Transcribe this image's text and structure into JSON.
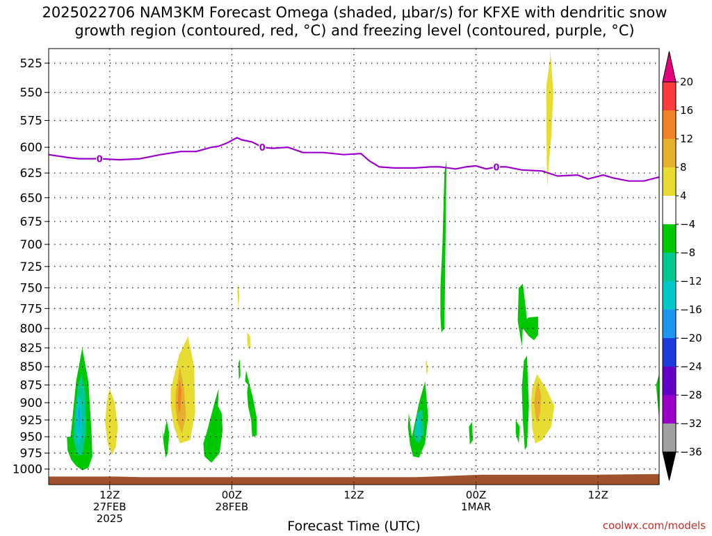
{
  "title": {
    "line1": "2025022706 NAM3KM Forecast Omega (shaded, μbar/s) for KFXE with dendritic snow",
    "line2": "growth region (contoured, red, °C) and freezing level (contoured, purple, °C)"
  },
  "credit": "coolwx.com/models",
  "colors": {
    "freezing_line": "#9900cc",
    "ground": "#a0522d",
    "grid": "#000000"
  },
  "chart_data": {
    "type": "heatmap",
    "title": "2025022706 NAM3KM Forecast Omega (shaded, μbar/s) for KFXE with dendritic snow growth region (contoured, red, °C) and freezing level (contoured, purple, °C)",
    "xlabel": "Forecast Time (UTC)",
    "ylabel": "",
    "x_unit": "forecast hour from 2025-02-27 06Z",
    "xlim": [
      0,
      60
    ],
    "ylim": [
      1025,
      513
    ],
    "y_scale": "log",
    "grid": true,
    "x_ticks": [
      {
        "hour": 6,
        "lines": [
          "12Z",
          "27FEB",
          "2025"
        ]
      },
      {
        "hour": 18,
        "lines": [
          "00Z",
          "28FEB"
        ]
      },
      {
        "hour": 30,
        "lines": [
          "12Z"
        ]
      },
      {
        "hour": 42,
        "lines": [
          "00Z",
          "1MAR"
        ]
      },
      {
        "hour": 54,
        "lines": [
          "12Z"
        ]
      }
    ],
    "y_ticks": [
      525,
      550,
      575,
      600,
      625,
      650,
      675,
      700,
      725,
      750,
      775,
      800,
      825,
      850,
      875,
      900,
      925,
      950,
      975,
      1000
    ],
    "colorbar": {
      "levels": [
        -36,
        -32,
        -28,
        -24,
        -20,
        -16,
        -12,
        -8,
        -4,
        4,
        8,
        12,
        16,
        20
      ],
      "colors": [
        "#000000",
        "#a0a0a0",
        "#9b00c8",
        "#6400c8",
        "#1e3cdc",
        "#1e96f0",
        "#00c8c8",
        "#00c890",
        "#00c800",
        "#ffffff",
        "#e6dc32",
        "#e6af2d",
        "#f08228",
        "#fa3c3c",
        "#e6007d"
      ]
    },
    "freezing_level": {
      "label": "0",
      "label_hours": [
        5,
        21,
        44
      ],
      "hours": [
        0,
        2,
        3,
        5,
        7,
        9,
        11,
        13,
        14.5,
        16,
        16.7,
        17.5,
        18.5,
        19,
        20,
        21,
        22,
        23.5,
        25,
        27,
        29,
        30.7,
        31.5,
        32.5,
        34,
        36,
        37.5,
        38.5,
        40,
        41,
        42,
        43,
        44,
        45,
        46.5,
        48.5,
        50,
        52,
        53,
        54.5,
        55.5,
        57,
        58.5,
        60
      ],
      "pressure": [
        607,
        610,
        611,
        611,
        612,
        611,
        607,
        604,
        604,
        600,
        599,
        596,
        591,
        593,
        595,
        600,
        601,
        600,
        605,
        605,
        607,
        606,
        613,
        619,
        620,
        620,
        619,
        619,
        621,
        619,
        618,
        621,
        619,
        619,
        622,
        623,
        628,
        627,
        631,
        627,
        630,
        633,
        633,
        629
      ]
    },
    "ground_pressure": {
      "hours": [
        0,
        6.7,
        9,
        36,
        42.5,
        53.5,
        60
      ],
      "pressure": [
        1012,
        1012,
        1013,
        1013,
        1009,
        1009,
        1008
      ]
    },
    "omega_regions": [
      {
        "value": -8,
        "hours": [
          2.15,
          2.7,
          3.3,
          3.9,
          4.2,
          4.3,
          3.9,
          3.3,
          2.7,
          2.2,
          1.85,
          1.8
        ],
        "pressure": [
          950,
          870,
          825,
          870,
          940,
          980,
          998,
          1002,
          995,
          985,
          970,
          950
        ]
      },
      {
        "value": -12,
        "hours": [
          2.5,
          2.85,
          3.2,
          3.6,
          3.7,
          3.3,
          2.8,
          2.45
        ],
        "pressure": [
          925,
          880,
          860,
          885,
          940,
          978,
          978,
          955
        ]
      },
      {
        "value": -16,
        "hours": [
          2.7,
          2.9,
          3.25,
          3.3,
          2.9,
          2.7
        ],
        "pressure": [
          915,
          890,
          900,
          945,
          965,
          940
        ]
      },
      {
        "value": -20,
        "hours": [
          2.9,
          3.0,
          3.1,
          3.0
        ],
        "pressure": [
          915,
          905,
          925,
          940
        ]
      },
      {
        "value": 4,
        "hours": [
          5.7,
          6.0,
          6.5,
          6.8,
          6.6,
          6.2,
          5.8,
          5.55
        ],
        "pressure": [
          900,
          880,
          900,
          935,
          965,
          978,
          960,
          930
        ]
      },
      {
        "value": 4,
        "hours": [
          12.2,
          12.8,
          13.7,
          14.3,
          14.4,
          13.9,
          12.9,
          12.3,
          12.0,
          12.0
        ],
        "pressure": [
          870,
          835,
          810,
          850,
          915,
          955,
          960,
          935,
          905,
          880
        ]
      },
      {
        "value": 8,
        "hours": [
          12.5,
          12.9,
          13.3,
          13.5,
          13.1,
          12.7,
          12.45
        ],
        "pressure": [
          885,
          850,
          880,
          920,
          945,
          930,
          905
        ]
      },
      {
        "value": 12,
        "hours": [
          12.75,
          12.9,
          13.05,
          12.95,
          12.8,
          12.7
        ],
        "pressure": [
          880,
          868,
          885,
          910,
          915,
          900
        ]
      },
      {
        "value": -8,
        "hours": [
          11.3,
          11.6,
          11.85,
          11.7,
          11.5,
          11.3,
          11.15
        ],
        "pressure": [
          950,
          925,
          945,
          975,
          982,
          960,
          940
        ]
      },
      {
        "value": -8,
        "hours": [
          15.6,
          16.3,
          16.7,
          16.65,
          17.0,
          17.1,
          16.8,
          16.0,
          15.3,
          15.2,
          15.4
        ],
        "pressure": [
          940,
          900,
          880,
          905,
          915,
          940,
          975,
          990,
          980,
          960,
          950
        ]
      },
      {
        "value": 4,
        "hours": [
          18.55,
          18.65,
          18.75,
          18.65
        ],
        "pressure": [
          755,
          745,
          760,
          775
        ]
      },
      {
        "value": 4,
        "hours": [
          19.5,
          19.8,
          19.85,
          19.6,
          19.5
        ],
        "pressure": [
          805,
          810,
          825,
          825,
          815
        ]
      },
      {
        "value": -8,
        "hours": [
          18.65,
          18.8,
          18.85,
          18.7
        ],
        "pressure": [
          845,
          840,
          862,
          868
        ]
      },
      {
        "value": -8,
        "hours": [
          19.4,
          19.7,
          20.1,
          20.45,
          20.45,
          20.0,
          19.9,
          19.6,
          19.5,
          19.6,
          19.3
        ],
        "pressure": [
          855,
          872,
          895,
          922,
          948,
          950,
          925,
          905,
          885,
          875,
          870
        ]
      },
      {
        "value": -8,
        "hours": [
          35.7,
          36.4,
          37.0,
          37.3,
          37.0,
          36.4,
          35.8,
          35.5,
          35.3,
          35.4
        ],
        "pressure": [
          950,
          900,
          870,
          920,
          960,
          982,
          980,
          960,
          935,
          915
        ]
      },
      {
        "value": -12,
        "hours": [
          36.0,
          36.2,
          36.7,
          36.9,
          36.4,
          36.0,
          35.9
        ],
        "pressure": [
          935,
          915,
          910,
          945,
          960,
          955,
          945
        ]
      },
      {
        "value": -16,
        "hours": [
          36.1,
          36.4,
          36.5,
          36.2
        ],
        "pressure": [
          930,
          925,
          945,
          948
        ]
      },
      {
        "value": 4,
        "hours": [
          37.05,
          37.15,
          37.25,
          37.15
        ],
        "pressure": [
          845,
          840,
          855,
          862
        ]
      },
      {
        "value": -8,
        "hours": [
          38.7,
          38.9,
          39.1,
          39.0,
          38.9,
          38.6,
          38.5,
          38.5
        ],
        "pressure": [
          700,
          625,
          612,
          700,
          800,
          805,
          785,
          750
        ]
      },
      {
        "value": -8,
        "hours": [
          41.3,
          41.6,
          41.7,
          41.4
        ],
        "pressure": [
          935,
          928,
          955,
          962
        ]
      },
      {
        "value": -8,
        "hours": [
          46.2,
          46.6,
          46.8,
          47.0,
          47.2,
          48.1,
          48.1,
          47.7,
          47.2,
          46.6,
          46.5,
          46.1
        ],
        "pressure": [
          750,
          745,
          765,
          788,
          786,
          785,
          808,
          815,
          810,
          800,
          823,
          790
        ]
      },
      {
        "value": -8,
        "hours": [
          46.7,
          47.0,
          47.2,
          47.0,
          46.8,
          46.6,
          46.5
        ],
        "pressure": [
          842,
          835,
          905,
          965,
          970,
          925,
          880
        ]
      },
      {
        "value": -8,
        "hours": [
          45.9,
          46.3,
          46.2,
          45.9
        ],
        "pressure": [
          925,
          935,
          960,
          945
        ]
      },
      {
        "value": 4,
        "hours": [
          48.9,
          49.3,
          49.3,
          49.4,
          49.6,
          49.4,
          49.2,
          49.0,
          48.95
        ],
        "pressure": [
          545,
          520,
          513,
          525,
          550,
          590,
          610,
          640,
          610
        ]
      },
      {
        "value": 4,
        "hours": [
          47.5,
          48.0,
          48.9,
          49.7,
          49.4,
          48.5,
          47.8,
          47.5,
          47.4
        ],
        "pressure": [
          880,
          860,
          880,
          905,
          935,
          955,
          960,
          935,
          900
        ]
      },
      {
        "value": 8,
        "hours": [
          47.9,
          48.1,
          48.4,
          48.3,
          48.0,
          47.8,
          47.7
        ],
        "pressure": [
          880,
          870,
          890,
          915,
          930,
          915,
          900
        ]
      },
      {
        "value": -8,
        "hours": [
          59.7,
          60.0,
          60.0
        ],
        "pressure": [
          875,
          860,
          925
        ]
      }
    ]
  }
}
